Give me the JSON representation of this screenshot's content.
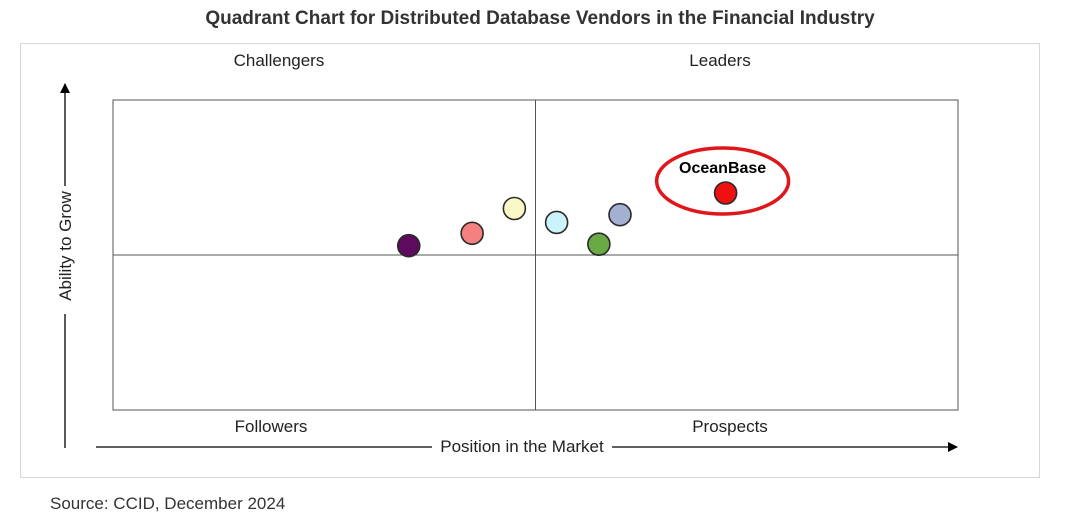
{
  "chart_data": {
    "type": "scatter",
    "title": "Quadrant Chart for Distributed Database Vendors in the Financial Industry",
    "xlabel": "Position in the Market",
    "ylabel": "Ability to Grow",
    "quadrants": {
      "top_left": "Challengers",
      "top_right": "Leaders",
      "bottom_left": "Followers",
      "bottom_right": "Prospects"
    },
    "xlim": [
      0,
      100
    ],
    "ylim": [
      0,
      100
    ],
    "points": [
      {
        "label": "",
        "x": 35,
        "y": 53,
        "color": "#5e0a5e"
      },
      {
        "label": "",
        "x": 42.5,
        "y": 57,
        "color": "#f58080"
      },
      {
        "label": "",
        "x": 47.5,
        "y": 65,
        "color": "#fbf8c8"
      },
      {
        "label": "",
        "x": 52.5,
        "y": 60.5,
        "color": "#cbf3fa"
      },
      {
        "label": "",
        "x": 57.5,
        "y": 53.5,
        "color": "#6aaa45"
      },
      {
        "label": "",
        "x": 60,
        "y": 63,
        "color": "#a4b0d2"
      },
      {
        "label": "OceanBase",
        "x": 72.5,
        "y": 70,
        "color": "#ee1111",
        "highlighted": true
      }
    ]
  },
  "source": "Source: CCID, December 2024"
}
